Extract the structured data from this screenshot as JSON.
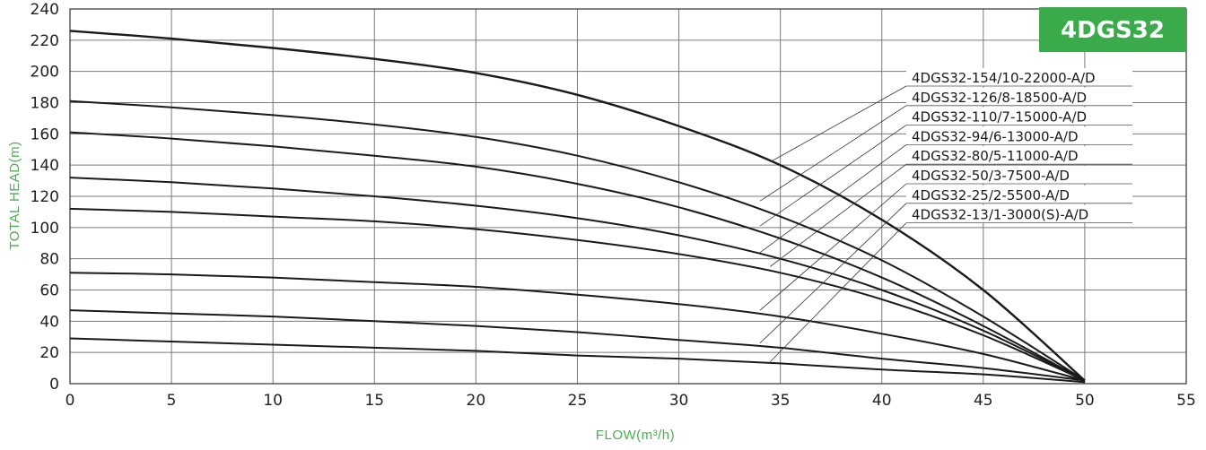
{
  "chart_data": {
    "type": "line",
    "badge": "4DGS32",
    "xlabel": "FLOW(m³/h)",
    "ylabel": "TOTAL HEAD(m)",
    "xlim": [
      0,
      55
    ],
    "ylim": [
      0,
      240
    ],
    "xticks": [
      0,
      5,
      10,
      15,
      20,
      25,
      30,
      35,
      40,
      45,
      50,
      55
    ],
    "yticks": [
      0,
      20,
      40,
      60,
      80,
      100,
      120,
      140,
      160,
      180,
      200,
      220,
      240
    ],
    "grid": true,
    "legend_position": "top-right",
    "colors": {
      "axis_title": "#4caf50",
      "badge_bg": "#3aaa4a",
      "grid": "#7a7a7a",
      "line": "#1a1a1a"
    },
    "series": [
      {
        "name": "4DGS32-154/10-22000-A/D",
        "x": [
          0,
          5,
          10,
          15,
          20,
          25,
          30,
          35,
          40,
          45,
          50
        ],
        "y": [
          226,
          221,
          215,
          208,
          199,
          185,
          165,
          140,
          105,
          60,
          2
        ]
      },
      {
        "name": "4DGS32-126/8-18500-A/D",
        "x": [
          0,
          5,
          10,
          15,
          20,
          25,
          30,
          35,
          40,
          45,
          50
        ],
        "y": [
          181,
          177,
          172,
          166,
          158,
          146,
          129,
          107,
          79,
          43,
          2
        ]
      },
      {
        "name": "4DGS32-110/7-15000-A/D",
        "x": [
          0,
          5,
          10,
          15,
          20,
          25,
          30,
          35,
          40,
          45,
          50
        ],
        "y": [
          161,
          157,
          152,
          146,
          139,
          128,
          113,
          93,
          68,
          37,
          2
        ]
      },
      {
        "name": "4DGS32-94/6-13000-A/D",
        "x": [
          0,
          5,
          10,
          15,
          20,
          25,
          30,
          35,
          40,
          45,
          50
        ],
        "y": [
          132,
          129,
          125,
          120,
          114,
          106,
          95,
          80,
          60,
          34,
          2
        ]
      },
      {
        "name": "4DGS32-80/5-11000-A/D",
        "x": [
          0,
          5,
          10,
          15,
          20,
          25,
          30,
          35,
          40,
          45,
          50
        ],
        "y": [
          112,
          110,
          107,
          104,
          99,
          92,
          83,
          71,
          54,
          31,
          2
        ]
      },
      {
        "name": "4DGS32-50/3-7500-A/D",
        "x": [
          0,
          5,
          10,
          15,
          20,
          25,
          30,
          35,
          40,
          45,
          50
        ],
        "y": [
          71,
          70,
          68,
          65,
          62,
          57,
          51,
          43,
          32,
          19,
          2
        ]
      },
      {
        "name": "4DGS32-25/2-5500-A/D",
        "x": [
          0,
          5,
          10,
          15,
          20,
          25,
          30,
          35,
          40,
          45,
          50
        ],
        "y": [
          47,
          45,
          43,
          40,
          37,
          33,
          28,
          23,
          16,
          10,
          2
        ]
      },
      {
        "name": "4DGS32-13/1-3000(S)-A/D",
        "x": [
          0,
          5,
          10,
          15,
          20,
          25,
          30,
          35,
          40,
          45,
          50
        ],
        "y": [
          29,
          27,
          25,
          23,
          21,
          18,
          16,
          13,
          9,
          6,
          1
        ]
      }
    ],
    "leader_targets": [
      [
        34.5,
        142
      ],
      [
        34,
        117
      ],
      [
        34,
        101
      ],
      [
        34,
        84
      ],
      [
        34.5,
        75
      ],
      [
        34,
        47
      ],
      [
        34,
        26
      ],
      [
        34.5,
        14
      ]
    ]
  }
}
